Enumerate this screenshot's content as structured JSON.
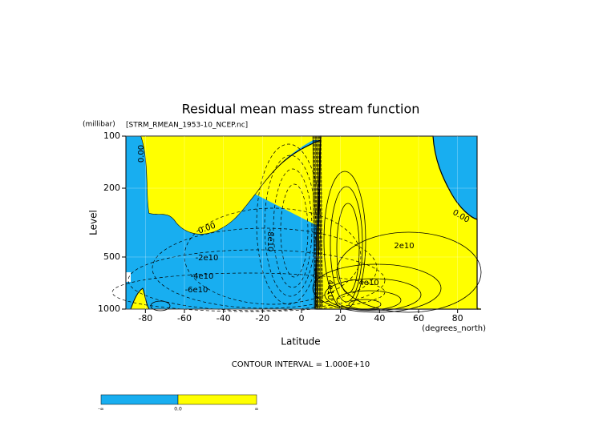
{
  "chart_data": {
    "type": "contour",
    "title": "Residual mean mass stream function",
    "subtitle": "[STRM_RMEAN_1953-10_NCEP.nc]",
    "y_units": "(millibar)",
    "x_units": "(degrees_north)",
    "x_label": "Latitude",
    "y_label": "Level",
    "xlim": [
      -90,
      90
    ],
    "xticks": [
      -80,
      -60,
      -40,
      -20,
      0,
      20,
      40,
      60,
      80
    ],
    "ylim": [
      1000,
      100
    ],
    "yticks": [
      100,
      200,
      500,
      1000
    ],
    "log_y": true,
    "grid": true,
    "annotations": [
      "0.00",
      "0.00",
      "-2e10",
      "-4e10",
      "-6e10",
      "-8e10",
      "2e10",
      "4e10",
      "4e10",
      "0.00"
    ],
    "footer": "CONTOUR INTERVAL = 1.000E+10",
    "colorbar": {
      "labels": [
        "-∞",
        "0.0",
        "∞"
      ],
      "colors": [
        "#18aef0",
        "#ffff00"
      ]
    }
  }
}
